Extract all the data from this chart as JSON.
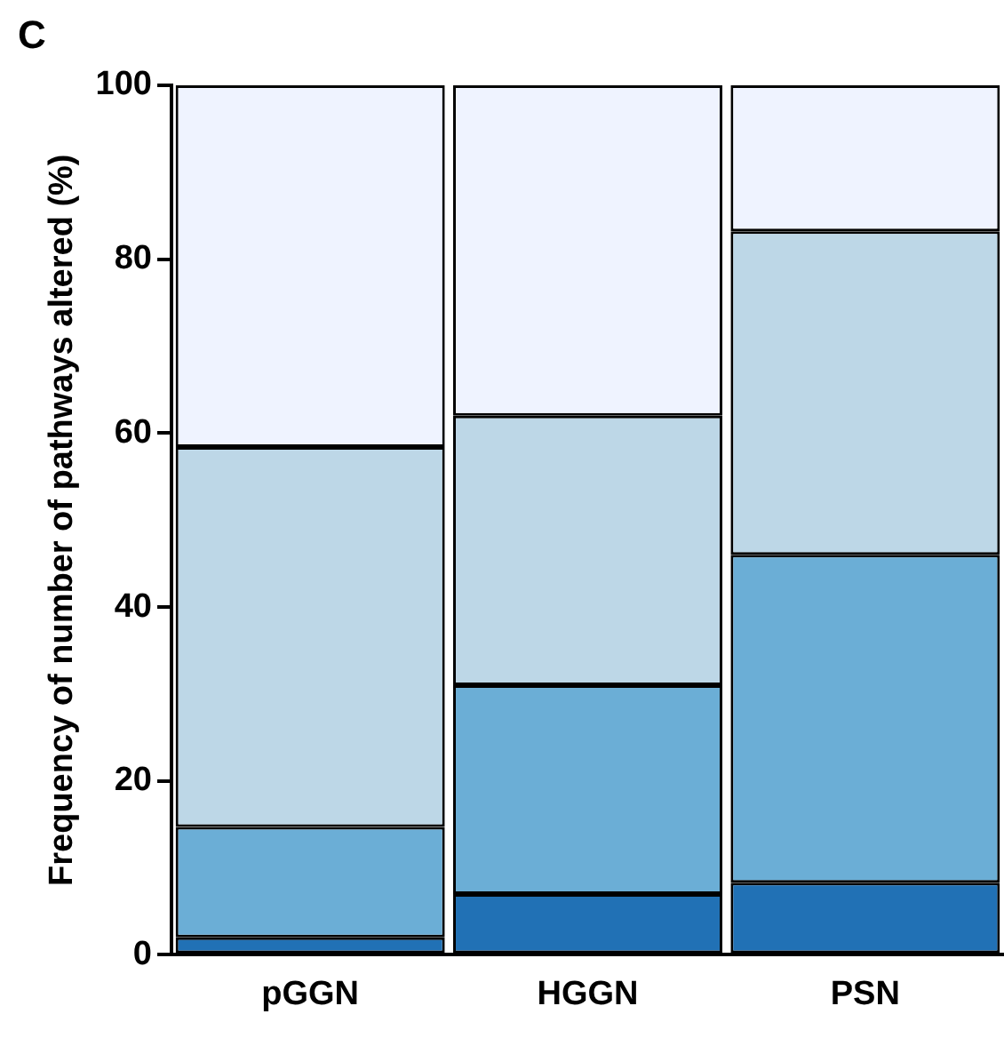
{
  "chart_data": {
    "type": "bar",
    "stacked": true,
    "categories": [
      "pGGN",
      "HGGN",
      "PSN"
    ],
    "ylabel": "Frequency of number of pathways altered (%)",
    "series": [
      {
        "color": "#2171b5",
        "values": [
          2,
          7,
          8.3
        ]
      },
      {
        "color": "#6baed6",
        "values": [
          12.7,
          24,
          37.7
        ]
      },
      {
        "color": "#bdd7e7",
        "values": [
          43.7,
          31,
          37.2
        ]
      },
      {
        "color": "#eff3ff",
        "values": [
          41.6,
          38,
          16.8
        ]
      }
    ],
    "ylim": [
      0,
      100
    ],
    "yticks": [
      0,
      20,
      40,
      60,
      80,
      100
    ],
    "grid": false,
    "legend": false,
    "annotations": [
      "C"
    ]
  }
}
